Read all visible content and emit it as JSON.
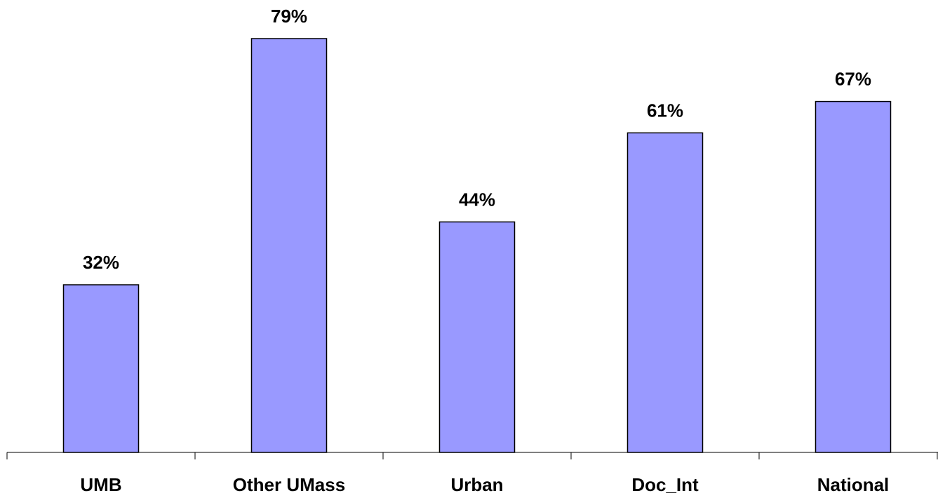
{
  "chart_data": {
    "type": "bar",
    "categories": [
      "UMB",
      "Other UMass",
      "Urban",
      "Doc_Int",
      "National"
    ],
    "values": [
      32,
      79,
      44,
      61,
      67
    ],
    "value_labels": [
      "32%",
      "79%",
      "44%",
      "61%",
      "67%"
    ],
    "color": "#9999ff"
  }
}
